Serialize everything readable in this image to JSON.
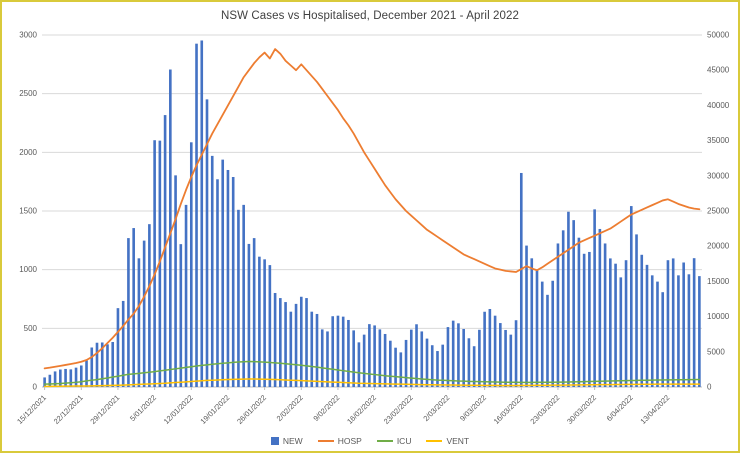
{
  "title": "NSW Cases vs Hospitalised, December 2021 - April 2022",
  "legend": {
    "items": [
      {
        "label": "NEW",
        "marker": "bar",
        "color": "#4472C4"
      },
      {
        "label": "HOSP",
        "marker": "line",
        "color": "#ED7D31"
      },
      {
        "label": "ICU",
        "marker": "line",
        "color": "#70AD47"
      },
      {
        "label": "VENT",
        "marker": "line",
        "color": "#FFC000"
      }
    ]
  },
  "chart_data": {
    "type": "combo-bar-line",
    "title": "NSW Cases vs Hospitalised, December 2021 - April 2022",
    "start_date": "15/12/2021",
    "x_tick_interval_days": 7,
    "x_tick_labels": [
      "15/12/2021",
      "22/12/2021",
      "29/12/2021",
      "5/01/2022",
      "12/01/2022",
      "19/01/2022",
      "26/01/2022",
      "2/02/2022",
      "9/02/2022",
      "16/02/2022",
      "23/02/2022",
      "2/03/2022",
      "9/03/2022",
      "16/03/2022",
      "23/03/2022",
      "30/03/2022",
      "6/04/2022",
      "13/04/2022"
    ],
    "grid": true,
    "legend_position": "bottom",
    "left_axis": {
      "min": 0,
      "max": 3000,
      "step": 500,
      "ticks": [
        "0",
        "500",
        "1000",
        "1500",
        "2000",
        "2500",
        "3000"
      ],
      "series": [
        "HOSP",
        "ICU",
        "VENT"
      ]
    },
    "right_axis": {
      "min": 0,
      "max": 50000,
      "step": 5000,
      "ticks": [
        "0",
        "5000",
        "10000",
        "15000",
        "20000",
        "25000",
        "30000",
        "35000",
        "40000",
        "45000",
        "50000"
      ],
      "series": [
        "NEW"
      ]
    },
    "series": [
      {
        "name": "NEW",
        "type": "bar",
        "axis": "right",
        "color": "#4472C4",
        "values": [
          1360,
          1742,
          2213,
          2482,
          2566,
          2501,
          2749,
          3057,
          3763,
          5612,
          6288,
          6324,
          6062,
          6394,
          11201,
          12226,
          21151,
          22577,
          18278,
          20794,
          23131,
          35054,
          34994,
          38625,
          45098,
          30062,
          20293,
          25870,
          34759,
          48768,
          49221,
          40856,
          32830,
          29504,
          32297,
          30825,
          29830,
          25168,
          25871,
          20324,
          21151,
          18512,
          18133,
          17316,
          13354,
          12632,
          12066,
          10698,
          11807,
          12818,
          12632,
          10698,
          10375,
          8183,
          7893,
          10053,
          10130,
          9995,
          9521,
          8043,
          6341,
          7437,
          8931,
          8749,
          8184,
          7532,
          6575,
          5582,
          4916,
          6686,
          8150,
          8911,
          7893,
          6875,
          5934,
          5107,
          6014,
          8511,
          9426,
          9046,
          8240,
          6921,
          5793,
          8128,
          10689,
          11079,
          10130,
          9082,
          8100,
          7437,
          9486,
          30402,
          20087,
          18278,
          16616,
          14970,
          13093,
          15091,
          20389,
          22255,
          24894,
          23702,
          21207,
          18923,
          19183,
          25235,
          22449,
          20389,
          18265,
          17517,
          15572,
          18012,
          25700,
          21678,
          18780,
          17350,
          15861,
          14970,
          13468,
          18012,
          18265,
          15861,
          17684,
          16008,
          18300,
          15750
        ]
      },
      {
        "name": "HOSP",
        "type": "line",
        "axis": "left",
        "color": "#ED7D31",
        "values": [
          159,
          165,
          173,
          180,
          188,
          196,
          205,
          215,
          230,
          255,
          290,
          330,
          375,
          420,
          470,
          520,
          575,
          625,
          690,
          770,
          860,
          960,
          1070,
          1190,
          1310,
          1430,
          1560,
          1680,
          1790,
          1890,
          1980,
          2070,
          2160,
          2240,
          2320,
          2400,
          2480,
          2560,
          2640,
          2700,
          2760,
          2810,
          2850,
          2800,
          2880,
          2840,
          2780,
          2740,
          2700,
          2750,
          2700,
          2650,
          2600,
          2540,
          2480,
          2420,
          2360,
          2290,
          2230,
          2160,
          2080,
          2000,
          1930,
          1860,
          1790,
          1720,
          1660,
          1600,
          1550,
          1500,
          1460,
          1420,
          1380,
          1340,
          1310,
          1280,
          1250,
          1220,
          1190,
          1160,
          1130,
          1110,
          1090,
          1070,
          1050,
          1030,
          1010,
          1000,
          990,
          985,
          980,
          1005,
          1030,
          1010,
          995,
          1020,
          1050,
          1080,
          1110,
          1140,
          1170,
          1200,
          1230,
          1250,
          1270,
          1290,
          1310,
          1330,
          1350,
          1380,
          1410,
          1440,
          1470,
          1490,
          1510,
          1530,
          1550,
          1570,
          1590,
          1600,
          1580,
          1560,
          1545,
          1530,
          1520,
          1515
        ]
      },
      {
        "name": "ICU",
        "type": "line",
        "axis": "left",
        "color": "#70AD47",
        "values": [
          24,
          26,
          28,
          30,
          33,
          36,
          40,
          45,
          52,
          58,
          63,
          70,
          77,
          85,
          92,
          100,
          108,
          112,
          116,
          121,
          126,
          131,
          137,
          143,
          149,
          155,
          161,
          167,
          173,
          179,
          184,
          189,
          194,
          198,
          202,
          206,
          210,
          213,
          215,
          217,
          216,
          214,
          212,
          209,
          206,
          202,
          198,
          194,
          190,
          185,
          180,
          175,
          169,
          163,
          157,
          151,
          145,
          139,
          133,
          127,
          121,
          116,
          111,
          106,
          101,
          96,
          92,
          88,
          84,
          80,
          76,
          72,
          68,
          65,
          62,
          59,
          57,
          55,
          53,
          51,
          50,
          48,
          47,
          46,
          45,
          44,
          43,
          42,
          41,
          40,
          40,
          39,
          39,
          39,
          40,
          40,
          41,
          41,
          42,
          42,
          43,
          44,
          45,
          46,
          47,
          48,
          49,
          50,
          51,
          52,
          53,
          54,
          55,
          56,
          57,
          58,
          59,
          60,
          60,
          61,
          61,
          62,
          62,
          63,
          63,
          64
        ]
      },
      {
        "name": "VENT",
        "type": "line",
        "axis": "left",
        "color": "#FFC000",
        "values": [
          5,
          5,
          6,
          6,
          7,
          7,
          8,
          8,
          9,
          10,
          11,
          12,
          13,
          14,
          15,
          16,
          18,
          20,
          22,
          24,
          26,
          28,
          30,
          32,
          35,
          38,
          41,
          44,
          47,
          50,
          53,
          56,
          58,
          60,
          62,
          64,
          65,
          66,
          67,
          68,
          68,
          67,
          66,
          65,
          64,
          62,
          60,
          58,
          56,
          54,
          52,
          50,
          48,
          46,
          44,
          42,
          40,
          38,
          36,
          34,
          32,
          31,
          30,
          29,
          28,
          27,
          26,
          25,
          24,
          23,
          22,
          21,
          20,
          19,
          19,
          18,
          18,
          17,
          17,
          16,
          16,
          15,
          15,
          15,
          14,
          14,
          14,
          13,
          13,
          13,
          13,
          14,
          14,
          14,
          15,
          15,
          15,
          16,
          16,
          16,
          17,
          17,
          18,
          18,
          19,
          19,
          20,
          20,
          20,
          21,
          21,
          22,
          22,
          22,
          23,
          23,
          23,
          24,
          24,
          24,
          24,
          25,
          25,
          25,
          25,
          25
        ]
      }
    ]
  }
}
